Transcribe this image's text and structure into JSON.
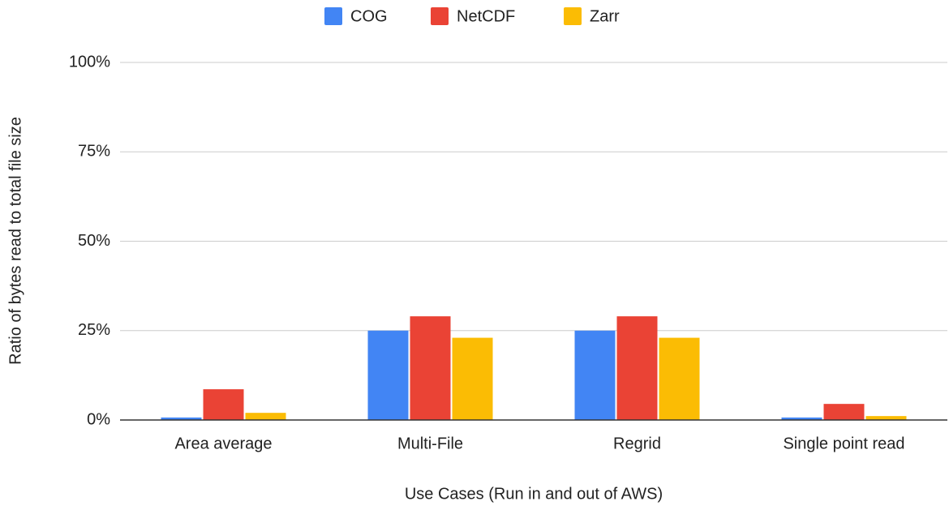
{
  "chart_data": {
    "type": "bar",
    "x_label": "Use Cases (Run in and out of AWS)",
    "y_label": "Ratio of bytes read to total file size",
    "categories": [
      "Area average",
      "Multi-File",
      "Regrid",
      "Single point read"
    ],
    "series": [
      {
        "name": "COG",
        "color": "#4285f4",
        "values": [
          0.7,
          25,
          25,
          0.7
        ]
      },
      {
        "name": "NetCDF",
        "color": "#ea4335",
        "values": [
          8.6,
          29,
          29,
          4.5
        ]
      },
      {
        "name": "Zarr",
        "color": "#fbbc04",
        "values": [
          2,
          23,
          23,
          1.1
        ]
      }
    ],
    "ylim": [
      0,
      100
    ],
    "yticks": [
      {
        "value": 0,
        "label": "0%"
      },
      {
        "value": 25,
        "label": "25%"
      },
      {
        "value": 50,
        "label": "50%"
      },
      {
        "value": 75,
        "label": "75%"
      },
      {
        "value": 100,
        "label": "100%"
      }
    ],
    "grid": true,
    "legend": "top"
  }
}
